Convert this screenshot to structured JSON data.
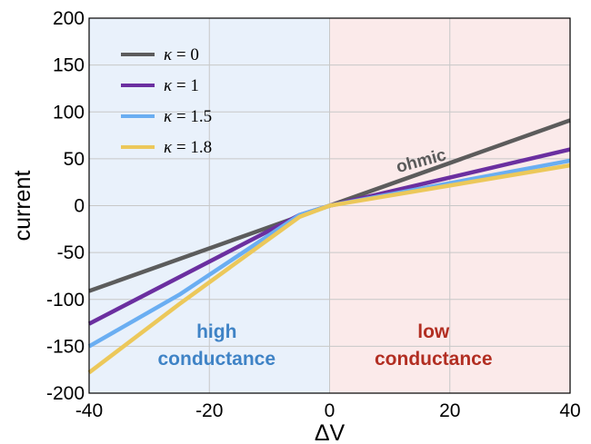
{
  "chart_data": {
    "type": "line",
    "title": "",
    "xlabel": "ΔV",
    "ylabel": "current",
    "xlim": [
      -40,
      40
    ],
    "ylim": [
      -200,
      200
    ],
    "xticks": [
      -40,
      -20,
      0,
      20,
      40
    ],
    "yticks": [
      200,
      150,
      100,
      50,
      0,
      -50,
      -100,
      -150,
      -200
    ],
    "xtick_labels": [
      "-40",
      "-20",
      "0",
      "20",
      "40"
    ],
    "ytick_labels": [
      "200",
      "150",
      "100",
      "50",
      "0",
      "-50",
      "-100",
      "-150",
      "-200"
    ],
    "grid": true,
    "legend_position": "top-left",
    "regions": [
      {
        "label_line1": "high",
        "label_line2": "conductance",
        "x_range": [
          -40,
          0
        ],
        "fill": "#e9f1fb",
        "text_color": "#3f83c6"
      },
      {
        "label_line1": "low",
        "label_line2": "conductance",
        "x_range": [
          0,
          40
        ],
        "fill": "#fbeaea",
        "text_color": "#b22e22"
      }
    ],
    "annotations": [
      {
        "text": "ohmic",
        "x": 20,
        "y": 47
      }
    ],
    "series": [
      {
        "name": "κ = 0",
        "legend_prefix": "κ",
        "legend_value": "= 0",
        "color": "#5c5c5c",
        "x": [
          -40,
          0,
          40
        ],
        "y": [
          -91,
          0,
          91
        ]
      },
      {
        "name": "κ = 1",
        "legend_prefix": "κ",
        "legend_value": "= 1",
        "color": "#6b2fa0",
        "x": [
          -40,
          -5,
          0,
          40
        ],
        "y": [
          -126,
          -10,
          0,
          60
        ]
      },
      {
        "name": "κ = 1.5",
        "legend_prefix": "κ",
        "legend_value": "= 1.5",
        "color": "#6aaef2",
        "x": [
          -40,
          -25,
          -5,
          0,
          40
        ],
        "y": [
          -150,
          -95,
          -10,
          0,
          48
        ]
      },
      {
        "name": "κ = 1.8",
        "legend_prefix": "κ",
        "legend_value": "= 1.8",
        "color": "#ecc85a",
        "x": [
          -40,
          -25,
          -5,
          0,
          40
        ],
        "y": [
          -178,
          -105,
          -12,
          0,
          43
        ]
      }
    ]
  }
}
